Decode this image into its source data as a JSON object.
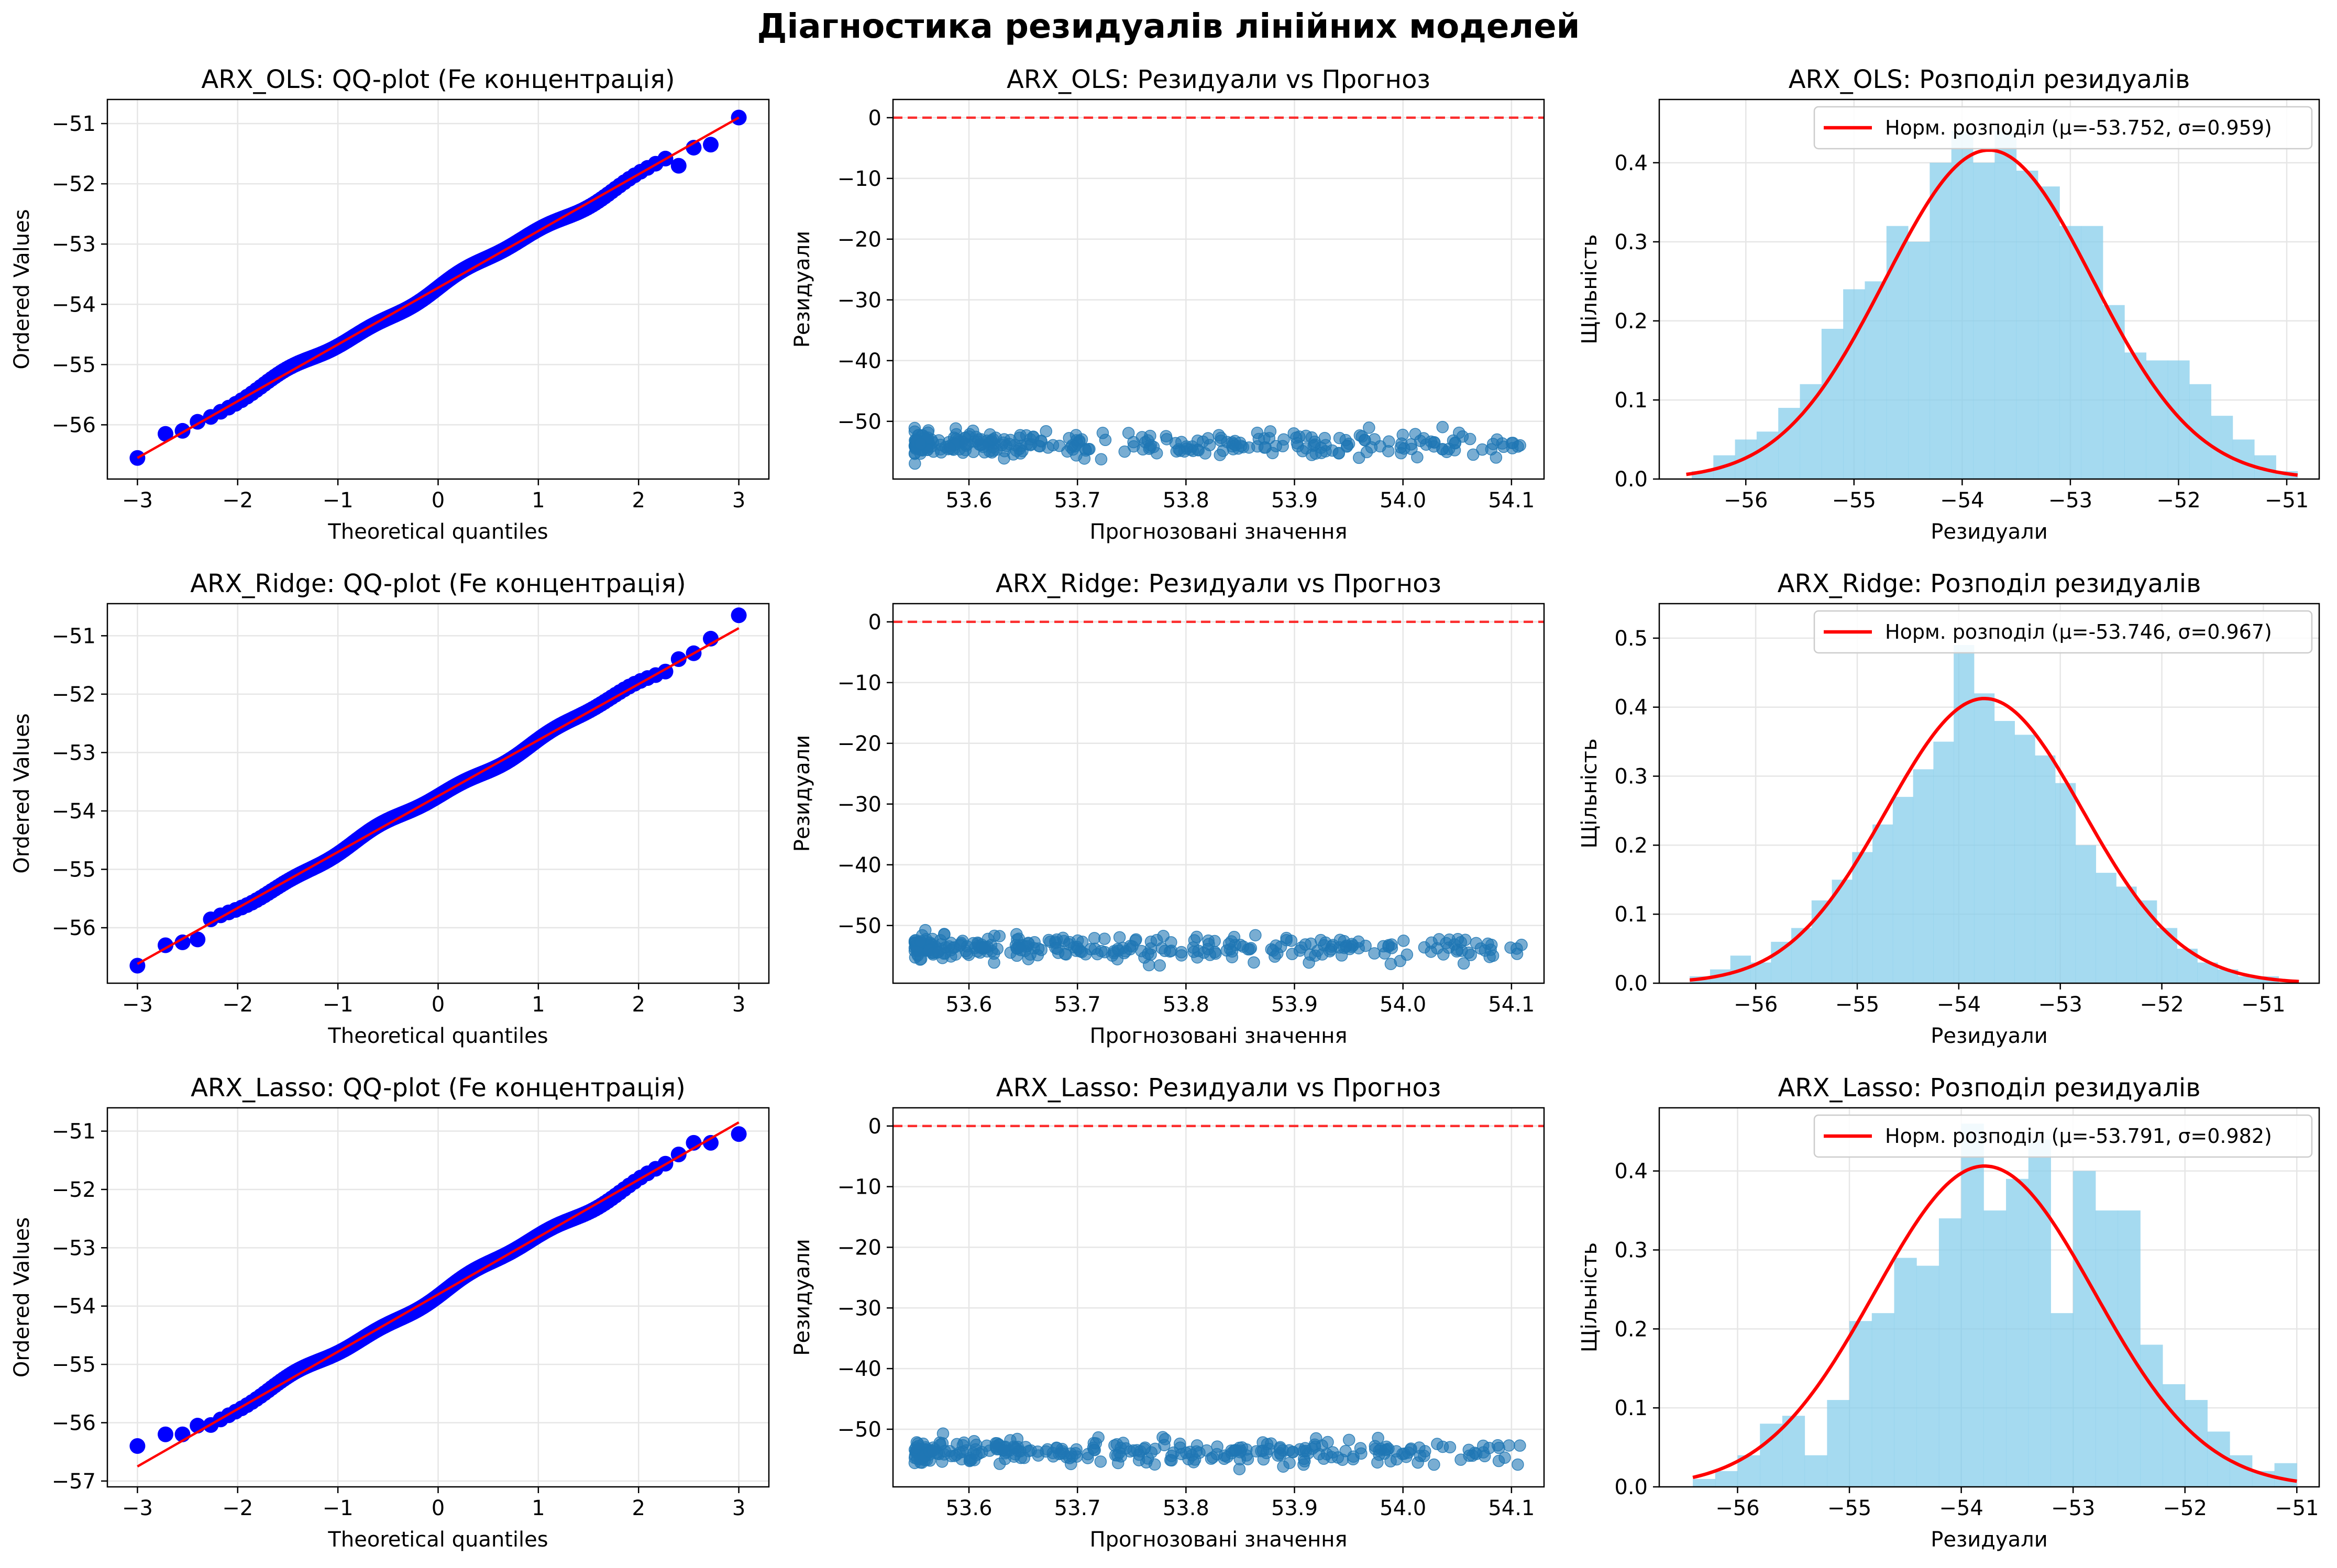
{
  "suptitle": "Діагностика резидуалів лінійних моделей",
  "colors": {
    "qq_points": "#0000ff",
    "qq_line": "#ff0000",
    "scatter_points": "#1f77b4",
    "zero_line": "#ff0000",
    "hist_bars": "#87ceeb",
    "normal_curve": "#ff0000",
    "grid": "#e6e6e6"
  },
  "chart_data": [
    {
      "type": "scatter",
      "subtype": "qq",
      "title": "ARX_OLS: QQ-plot (Fe концентрація)",
      "xlabel": "Theoretical quantiles",
      "ylabel": "Ordered Values",
      "xlim": [
        -3.3,
        3.3
      ],
      "ylim": [
        -56.9,
        -50.6
      ],
      "xticks": [
        -3,
        -2,
        -1,
        0,
        1,
        2,
        3
      ],
      "yticks": [
        -56,
        -55,
        -54,
        -53,
        -52,
        -51
      ],
      "fit_line": {
        "x": [
          -3,
          3
        ],
        "y": [
          -56.55,
          -50.9
        ]
      },
      "tail_points": [
        {
          "x": -3,
          "y": -56.55
        },
        {
          "x": -2.72,
          "y": -56.15
        },
        {
          "x": -2.55,
          "y": -56.1
        },
        {
          "x": -2.4,
          "y": -55.95
        },
        {
          "x": 2.4,
          "y": -51.7
        },
        {
          "x": 2.55,
          "y": -51.4
        },
        {
          "x": 2.72,
          "y": -51.35
        },
        {
          "x": 3,
          "y": -50.9
        }
      ],
      "n_points": 300,
      "grid": true
    },
    {
      "type": "scatter",
      "subtype": "residuals_vs_fitted",
      "title": "ARX_OLS: Резидуали vs Прогноз",
      "xlabel": "Прогнозовані значення",
      "ylabel": "Резидуали",
      "xlim": [
        53.53,
        54.13
      ],
      "ylim": [
        -59.5,
        3
      ],
      "xticks": [
        53.6,
        53.7,
        53.8,
        53.9,
        54.0,
        54.1
      ],
      "yticks": [
        0,
        -10,
        -20,
        -30,
        -40,
        -50
      ],
      "residual_mean": -53.75,
      "residual_spread": 1.3,
      "x_range": [
        53.55,
        54.11
      ],
      "n_points": 300,
      "zero_line": 0,
      "grid": true
    },
    {
      "type": "bar",
      "subtype": "histogram",
      "title": "ARX_OLS: Розподіл резидуалів",
      "xlabel": "Резидуали",
      "ylabel": "Щільність",
      "xlim": [
        -56.8,
        -50.7
      ],
      "ylim": [
        0,
        0.48
      ],
      "xticks": [
        -56,
        -55,
        -54,
        -53,
        -52,
        -51
      ],
      "yticks": [
        0.0,
        0.1,
        0.2,
        0.3,
        0.4
      ],
      "bin_start": -56.5,
      "bin_width": 0.2,
      "values": [
        0.01,
        0.03,
        0.05,
        0.06,
        0.09,
        0.12,
        0.19,
        0.24,
        0.25,
        0.32,
        0.3,
        0.4,
        0.44,
        0.4,
        0.44,
        0.39,
        0.37,
        0.32,
        0.32,
        0.22,
        0.16,
        0.15,
        0.15,
        0.12,
        0.08,
        0.05,
        0.03,
        0.01
      ],
      "legend": "Норм. розподіл (μ=-53.752, σ=0.959)",
      "legend_loc": "upper right",
      "normal": {
        "mu": -53.752,
        "sigma": 0.959,
        "x_range": [
          -56.55,
          -50.9
        ]
      },
      "grid": true
    },
    {
      "type": "scatter",
      "subtype": "qq",
      "title": "ARX_Ridge: QQ-plot (Fe концентрація)",
      "xlabel": "Theoretical quantiles",
      "ylabel": "Ordered Values",
      "xlim": [
        -3.3,
        3.3
      ],
      "ylim": [
        -56.95,
        -50.45
      ],
      "xticks": [
        -3,
        -2,
        -1,
        0,
        1,
        2,
        3
      ],
      "yticks": [
        -56,
        -55,
        -54,
        -53,
        -52,
        -51
      ],
      "fit_line": {
        "x": [
          -3,
          3
        ],
        "y": [
          -56.62,
          -50.87
        ]
      },
      "tail_points": [
        {
          "x": -3,
          "y": -56.65
        },
        {
          "x": -2.72,
          "y": -56.3
        },
        {
          "x": -2.55,
          "y": -56.25
        },
        {
          "x": -2.4,
          "y": -56.2
        },
        {
          "x": 2.4,
          "y": -51.4
        },
        {
          "x": 2.55,
          "y": -51.3
        },
        {
          "x": 2.72,
          "y": -51.05
        },
        {
          "x": 3,
          "y": -50.65
        }
      ],
      "n_points": 300,
      "grid": true
    },
    {
      "type": "scatter",
      "subtype": "residuals_vs_fitted",
      "title": "ARX_Ridge: Резидуали vs Прогноз",
      "xlabel": "Прогнозовані значення",
      "ylabel": "Резидуали",
      "xlim": [
        53.53,
        54.13
      ],
      "ylim": [
        -59.5,
        3
      ],
      "xticks": [
        53.6,
        53.7,
        53.8,
        53.9,
        54.0,
        54.1
      ],
      "yticks": [
        0,
        -10,
        -20,
        -30,
        -40,
        -50
      ],
      "residual_mean": -53.75,
      "residual_spread": 1.3,
      "x_range": [
        53.55,
        54.11
      ],
      "n_points": 300,
      "zero_line": 0,
      "grid": true
    },
    {
      "type": "bar",
      "subtype": "histogram",
      "title": "ARX_Ridge: Розподіл резидуалів",
      "xlabel": "Резидуали",
      "ylabel": "Щільність",
      "xlim": [
        -56.95,
        -50.45
      ],
      "ylim": [
        0,
        0.55
      ],
      "xticks": [
        -56,
        -55,
        -54,
        -53,
        -52,
        -51
      ],
      "yticks": [
        0.0,
        0.1,
        0.2,
        0.3,
        0.4,
        0.5
      ],
      "bin_start": -56.65,
      "bin_width": 0.2,
      "values": [
        0.01,
        0.02,
        0.04,
        0.03,
        0.06,
        0.08,
        0.12,
        0.15,
        0.19,
        0.23,
        0.27,
        0.31,
        0.35,
        0.49,
        0.42,
        0.38,
        0.36,
        0.33,
        0.29,
        0.2,
        0.16,
        0.14,
        0.12,
        0.08,
        0.05,
        0.03,
        0.02,
        0.01,
        0.01
      ],
      "legend": "Норм. розподіл (μ=-53.746, σ=0.967)",
      "legend_loc": "upper right",
      "normal": {
        "mu": -53.746,
        "sigma": 0.967,
        "x_range": [
          -56.65,
          -50.65
        ]
      },
      "grid": true
    },
    {
      "type": "scatter",
      "subtype": "qq",
      "title": "ARX_Lasso: QQ-plot (Fe концентрація)",
      "xlabel": "Theoretical quantiles",
      "ylabel": "Ordered Values",
      "xlim": [
        -3.3,
        3.3
      ],
      "ylim": [
        -57.1,
        -50.6
      ],
      "xticks": [
        -3,
        -2,
        -1,
        0,
        1,
        2,
        3
      ],
      "yticks": [
        -57,
        -56,
        -55,
        -54,
        -53,
        -52,
        -51
      ],
      "fit_line": {
        "x": [
          -3,
          3
        ],
        "y": [
          -56.75,
          -50.85
        ]
      },
      "tail_points": [
        {
          "x": -3,
          "y": -56.4
        },
        {
          "x": -2.72,
          "y": -56.2
        },
        {
          "x": -2.55,
          "y": -56.2
        },
        {
          "x": -2.4,
          "y": -56.05
        },
        {
          "x": 2.4,
          "y": -51.4
        },
        {
          "x": 2.55,
          "y": -51.2
        },
        {
          "x": 2.72,
          "y": -51.2
        },
        {
          "x": 3,
          "y": -51.05
        }
      ],
      "n_points": 300,
      "grid": true
    },
    {
      "type": "scatter",
      "subtype": "residuals_vs_fitted",
      "title": "ARX_Lasso: Резидуали vs Прогноз",
      "xlabel": "Прогнозовані значення",
      "ylabel": "Резидуали",
      "xlim": [
        53.53,
        54.13
      ],
      "ylim": [
        -59.5,
        3
      ],
      "xticks": [
        53.6,
        53.7,
        53.8,
        53.9,
        54.0,
        54.1
      ],
      "yticks": [
        0,
        -10,
        -20,
        -30,
        -40,
        -50
      ],
      "residual_mean": -53.79,
      "residual_spread": 1.3,
      "x_range": [
        53.55,
        54.11
      ],
      "n_points": 300,
      "zero_line": 0,
      "grid": true
    },
    {
      "type": "bar",
      "subtype": "histogram",
      "title": "ARX_Lasso: Розподіл резидуалів",
      "xlabel": "Резидуали",
      "ylabel": "Щільність",
      "xlim": [
        -56.7,
        -50.8
      ],
      "ylim": [
        0,
        0.48
      ],
      "xticks": [
        -56,
        -55,
        -54,
        -53,
        -52,
        -51
      ],
      "yticks": [
        0.0,
        0.1,
        0.2,
        0.3,
        0.4
      ],
      "bin_start": -56.4,
      "bin_width": 0.2,
      "values": [
        0.01,
        0.02,
        0.04,
        0.08,
        0.09,
        0.04,
        0.11,
        0.21,
        0.22,
        0.29,
        0.28,
        0.34,
        0.46,
        0.35,
        0.39,
        0.44,
        0.22,
        0.4,
        0.35,
        0.35,
        0.18,
        0.13,
        0.11,
        0.07,
        0.04,
        0.02,
        0.03
      ],
      "legend": "Норм. розподіл (μ=-53.791, σ=0.982)",
      "legend_loc": "upper right",
      "normal": {
        "mu": -53.791,
        "sigma": 0.982,
        "x_range": [
          -56.4,
          -51.0
        ]
      },
      "grid": true
    }
  ]
}
